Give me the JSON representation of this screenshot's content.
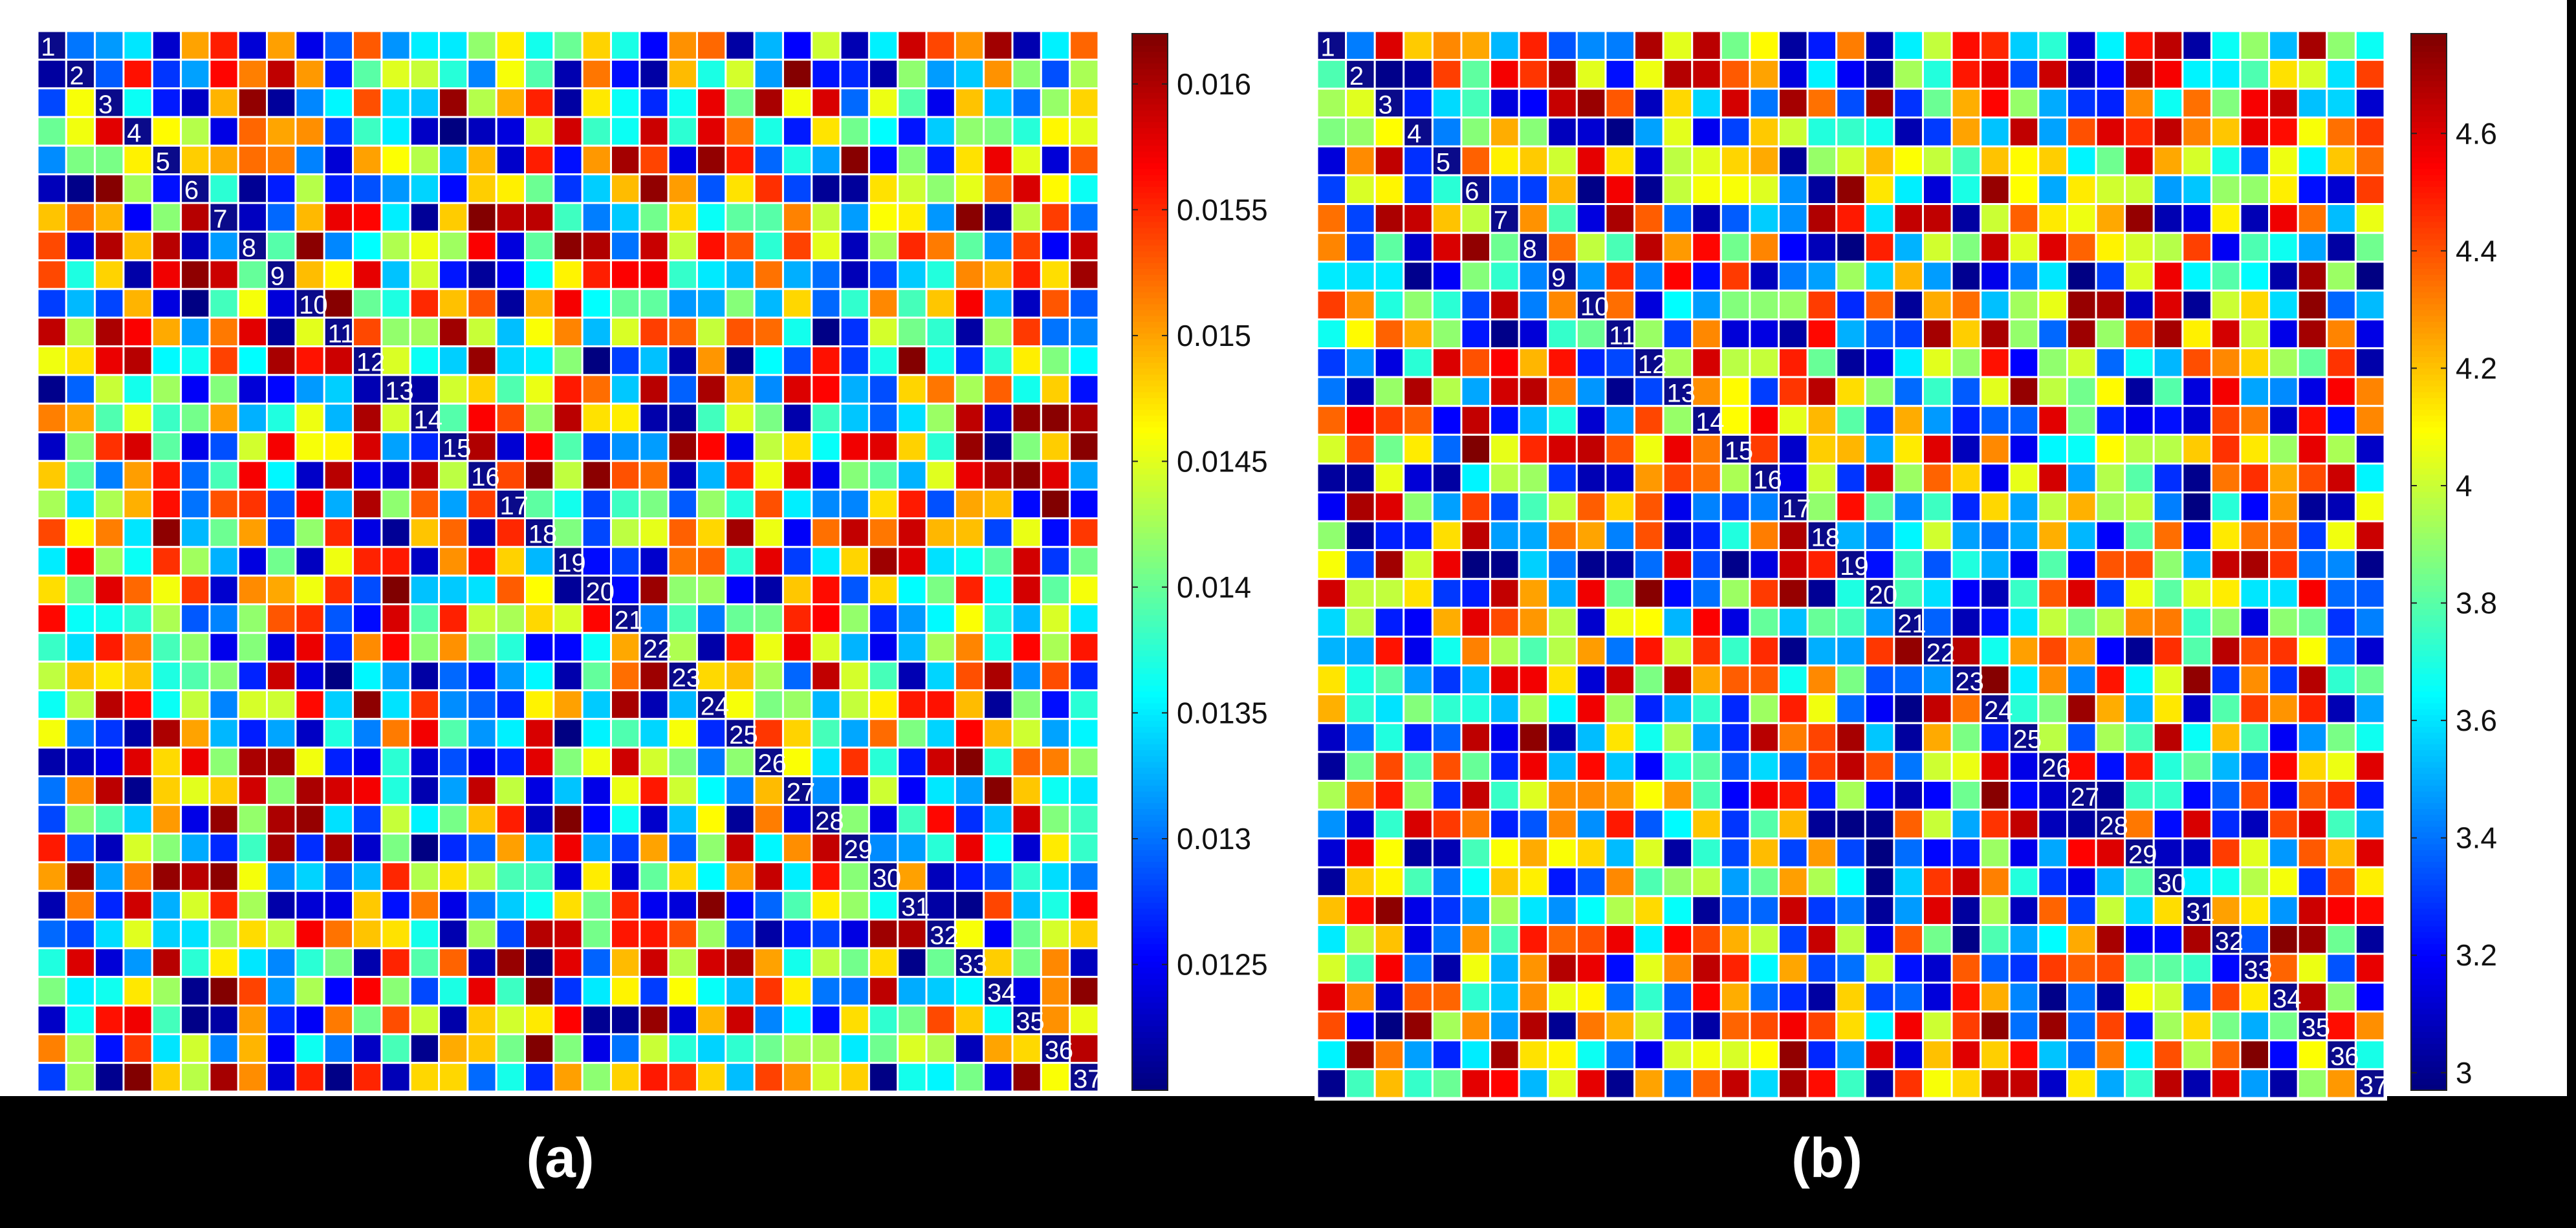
{
  "chart_data": [
    {
      "type": "heatmap",
      "panel_label": "(a)",
      "size": 37,
      "diagonal_labels": [
        "1",
        "2",
        "3",
        "4",
        "5",
        "6",
        "7",
        "8",
        "9",
        "10",
        "11",
        "12",
        "13",
        "14",
        "15",
        "16",
        "17",
        "18",
        "19",
        "20",
        "21",
        "22",
        "23",
        "24",
        "25",
        "26",
        "27",
        "28",
        "29",
        "30",
        "31",
        "32",
        "33",
        "34",
        "35",
        "36",
        "37"
      ],
      "colorbar": {
        "min": 0.012,
        "max": 0.0162,
        "ticks": [
          0.0125,
          0.013,
          0.0135,
          0.014,
          0.0145,
          0.015,
          0.0155,
          0.016
        ],
        "tick_labels": [
          "0.0125",
          "0.013",
          "0.0135",
          "0.014",
          "0.0145",
          "0.015",
          "0.0155",
          "0.016"
        ]
      },
      "colormap": "jet",
      "seed": 11,
      "note": "cell values are approximately uniform over the colorbar range; individual cells not legible"
    },
    {
      "type": "heatmap",
      "panel_label": "(b)",
      "size": 37,
      "diagonal_labels": [
        "1",
        "2",
        "3",
        "4",
        "5",
        "6",
        "7",
        "8",
        "9",
        "10",
        "11",
        "12",
        "13",
        "14",
        "15",
        "16",
        "17",
        "18",
        "19",
        "20",
        "21",
        "22",
        "23",
        "24",
        "25",
        "26",
        "27",
        "28",
        "29",
        "30",
        "31",
        "32",
        "33",
        "34",
        "35",
        "36",
        "37"
      ],
      "colorbar": {
        "min": 2.97,
        "max": 4.77,
        "ticks": [
          3,
          3.2,
          3.4,
          3.6,
          3.8,
          4,
          4.2,
          4.4,
          4.6
        ],
        "tick_labels": [
          "3",
          "3.2",
          "3.4",
          "3.6",
          "3.8",
          "4",
          "4.2",
          "4.4",
          "4.6"
        ]
      },
      "colormap": "jet",
      "seed": 29,
      "note": "cell values are approximately uniform over the colorbar range; individual cells not legible"
    }
  ]
}
